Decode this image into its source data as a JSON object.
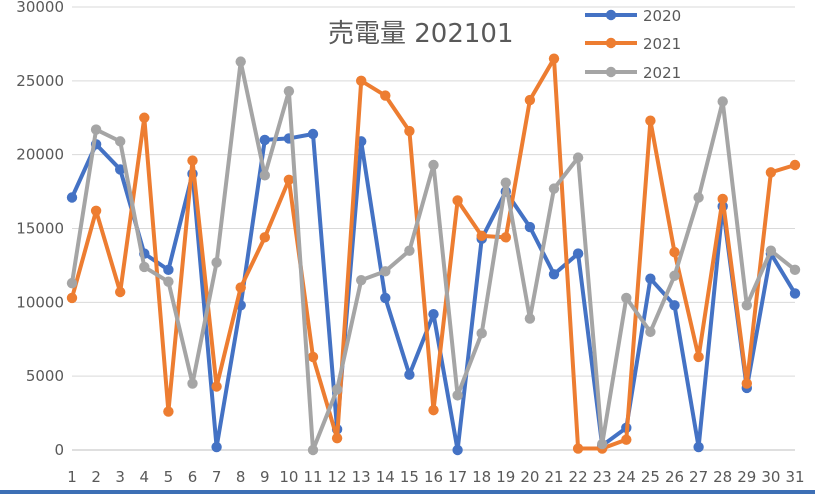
{
  "chart_data": {
    "type": "line",
    "title": "売電量 202101",
    "xlabel": "",
    "ylabel": "",
    "categories": [
      "1",
      "2",
      "3",
      "4",
      "5",
      "6",
      "7",
      "8",
      "9",
      "10",
      "11",
      "12",
      "13",
      "14",
      "15",
      "16",
      "17",
      "18",
      "19",
      "20",
      "21",
      "22",
      "23",
      "24",
      "25",
      "26",
      "27",
      "28",
      "29",
      "30",
      "31"
    ],
    "yticks": [
      "0",
      "5000",
      "10000",
      "15000",
      "20000",
      "25000",
      "30000"
    ],
    "ylim": [
      0,
      30000
    ],
    "grid": true,
    "legend_position": "top-right",
    "series": [
      {
        "name": "2020",
        "color": "#4472c4",
        "values": [
          17100,
          20700,
          19000,
          13300,
          12200,
          18700,
          200,
          9800,
          21000,
          21100,
          21400,
          1400,
          20900,
          10300,
          5100,
          9200,
          0,
          14300,
          17500,
          15100,
          11900,
          13300,
          300,
          1500,
          11600,
          9800,
          200,
          16500,
          4200,
          13300,
          10600
        ]
      },
      {
        "name": "2021",
        "color": "#ed7d31",
        "values": [
          10300,
          16200,
          10700,
          22500,
          2600,
          19600,
          4300,
          11000,
          14400,
          18300,
          6300,
          800,
          25000,
          24000,
          21600,
          2700,
          16900,
          14500,
          14400,
          23700,
          26500,
          100,
          100,
          700,
          22300,
          13400,
          6300,
          17000,
          4500,
          18800,
          19300
        ]
      },
      {
        "name": "2021",
        "color": "#a5a5a5",
        "values": [
          11300,
          21700,
          20900,
          12400,
          11400,
          4500,
          12700,
          26300,
          18600,
          24300,
          0,
          4100,
          11500,
          12100,
          13500,
          19300,
          3700,
          7900,
          18100,
          8900,
          17700,
          19800,
          400,
          10300,
          8000,
          11800,
          17100,
          23600,
          9800,
          13500,
          12200
        ]
      }
    ]
  }
}
